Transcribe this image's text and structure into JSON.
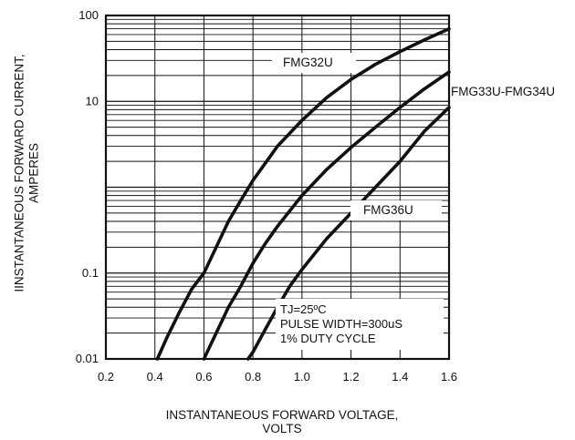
{
  "chart_data": {
    "type": "line",
    "title": "",
    "xlabel_lines": [
      "INSTANTANEOUS FORWARD VOLTAGE,",
      "VOLTS"
    ],
    "ylabel_lines": [
      "IINSTANTANEOUS FORWARD CURRENT,",
      "AMPERES"
    ],
    "xlim": [
      0.2,
      1.6
    ],
    "ylim": [
      0.01,
      100
    ],
    "yscale": "log",
    "grid": true,
    "x_ticks": [
      "0.2",
      "0.4",
      "0.6",
      "0.8",
      "1.0",
      "1.2",
      "1.4",
      "1.6"
    ],
    "y_ticks": [
      "0.01",
      "0.1",
      "10",
      "100"
    ],
    "series": [
      {
        "name": "FMG32U",
        "x": [
          0.41,
          0.45,
          0.5,
          0.55,
          0.6,
          0.65,
          0.7,
          0.75,
          0.8,
          0.9,
          1.0,
          1.1,
          1.2,
          1.3,
          1.4,
          1.5,
          1.6
        ],
        "y": [
          0.01,
          0.018,
          0.035,
          0.065,
          0.1,
          0.2,
          0.4,
          0.7,
          1.2,
          3.0,
          6.0,
          11,
          18,
          27,
          38,
          52,
          70
        ]
      },
      {
        "name": "FMG33U-FMG34U",
        "x": [
          0.6,
          0.65,
          0.7,
          0.75,
          0.8,
          0.85,
          0.9,
          1.0,
          1.1,
          1.2,
          1.3,
          1.4,
          1.5,
          1.6
        ],
        "y": [
          0.01,
          0.02,
          0.04,
          0.07,
          0.13,
          0.22,
          0.35,
          0.8,
          1.6,
          2.9,
          5.0,
          8.5,
          14,
          22
        ]
      },
      {
        "name": "FMG36U",
        "x": [
          0.78,
          0.8,
          0.85,
          0.9,
          0.95,
          1.0,
          1.1,
          1.2,
          1.3,
          1.4,
          1.5,
          1.6
        ],
        "y": [
          0.01,
          0.012,
          0.022,
          0.04,
          0.07,
          0.11,
          0.25,
          0.5,
          1.0,
          2.0,
          4.5,
          8.5
        ]
      }
    ],
    "annotations": {
      "condition_lines": [
        "TJ=25ºC",
        "PULSE WIDTH=300uS",
        "1% DUTY CYCLE"
      ]
    }
  }
}
